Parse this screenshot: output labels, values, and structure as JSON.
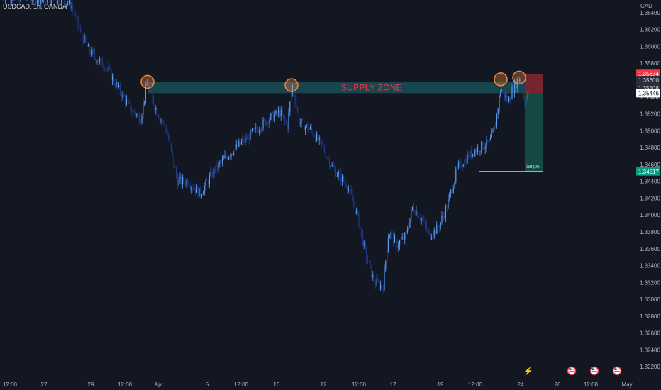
{
  "header": {
    "symbol": "USDCAD, 1h, OANDA",
    "currency": "CAD"
  },
  "colors": {
    "background": "#131722",
    "candle_up": "#5b9cf6",
    "candle_down": "#1e3a8a",
    "supply_zone": "#1a4f57",
    "stop_zone": "#9b2a35",
    "target_zone": "#145a4f",
    "circle": "#f0883e",
    "label_red": "#f23645",
    "label_green": "#089981"
  },
  "chart_data": {
    "type": "candlestick",
    "title": "USDCAD, 1h, OANDA",
    "ylabel": "CAD",
    "ylim": [
      1.3216,
      1.365
    ],
    "y_ticks": [
      "1.36400",
      "1.36200",
      "1.36000",
      "1.35800",
      "1.35600",
      "1.35400",
      "1.35200",
      "1.35000",
      "1.34800",
      "1.34600",
      "1.34400",
      "1.34200",
      "1.34000",
      "1.33800",
      "1.33600",
      "1.33400",
      "1.33200",
      "1.33000",
      "1.32800",
      "1.32600",
      "1.32400",
      "1.32200"
    ],
    "x_ticks": [
      "12:00",
      "27",
      "29",
      "12:00",
      "Apr",
      "5",
      "12:00",
      "10",
      "12",
      "12:00",
      "17",
      "19",
      "12:00",
      "24",
      "26",
      "12:00",
      "May"
    ],
    "price_path": [
      [
        0,
        1.366
      ],
      [
        90,
        1.3655
      ],
      [
        100,
        1.365
      ],
      [
        112,
        1.362
      ],
      [
        125,
        1.3595
      ],
      [
        150,
        1.3575
      ],
      [
        170,
        1.3545
      ],
      [
        185,
        1.3525
      ],
      [
        198,
        1.3515
      ],
      [
        208,
        1.3559
      ],
      [
        218,
        1.353
      ],
      [
        235,
        1.35
      ],
      [
        250,
        1.344
      ],
      [
        265,
        1.344
      ],
      [
        282,
        1.3425
      ],
      [
        300,
        1.345
      ],
      [
        320,
        1.347
      ],
      [
        340,
        1.3485
      ],
      [
        360,
        1.35
      ],
      [
        380,
        1.3515
      ],
      [
        395,
        1.3522
      ],
      [
        405,
        1.3505
      ],
      [
        412,
        1.3555
      ],
      [
        422,
        1.351
      ],
      [
        440,
        1.35
      ],
      [
        455,
        1.348
      ],
      [
        470,
        1.3455
      ],
      [
        490,
        1.3435
      ],
      [
        505,
        1.3395
      ],
      [
        515,
        1.3355
      ],
      [
        528,
        1.332
      ],
      [
        540,
        1.3315
      ],
      [
        548,
        1.338
      ],
      [
        560,
        1.3365
      ],
      [
        572,
        1.3375
      ],
      [
        582,
        1.341
      ],
      [
        595,
        1.3395
      ],
      [
        605,
        1.3375
      ],
      [
        618,
        1.3385
      ],
      [
        630,
        1.341
      ],
      [
        645,
        1.3455
      ],
      [
        660,
        1.347
      ],
      [
        675,
        1.348
      ],
      [
        690,
        1.3485
      ],
      [
        698,
        1.3505
      ],
      [
        706,
        1.355
      ],
      [
        716,
        1.3535
      ],
      [
        726,
        1.3555
      ],
      [
        733,
        1.3563
      ],
      [
        740,
        1.3535
      ],
      [
        746,
        1.3545
      ]
    ],
    "supply_zone": {
      "label": "SUPPLY ZONE",
      "top": 1.3558,
      "bottom": 1.35446,
      "x_start": 208,
      "x_end": 740
    },
    "highlight_points": [
      {
        "x": 208,
        "y": 1.3558
      },
      {
        "x": 411,
        "y": 1.3554
      },
      {
        "x": 706,
        "y": 1.3561
      },
      {
        "x": 732,
        "y": 1.3563
      }
    ],
    "trade": {
      "entry": 1.35446,
      "stop": 1.35674,
      "target": 1.34517,
      "target_label": "target",
      "x_start": 740,
      "x_end": 766,
      "line_x_start": 676
    },
    "price_tags": [
      {
        "value": "1.35674",
        "price": 1.35674,
        "kind": "stop"
      },
      {
        "value": "1.35600",
        "price": 1.356,
        "kind": "neutral"
      },
      {
        "value": "1.35508",
        "price": 1.35508,
        "kind": "neutral"
      },
      {
        "value": "1.35446",
        "price": 1.35446,
        "kind": "entry"
      },
      {
        "value": "1.34517",
        "price": 1.34517,
        "kind": "target"
      }
    ]
  }
}
